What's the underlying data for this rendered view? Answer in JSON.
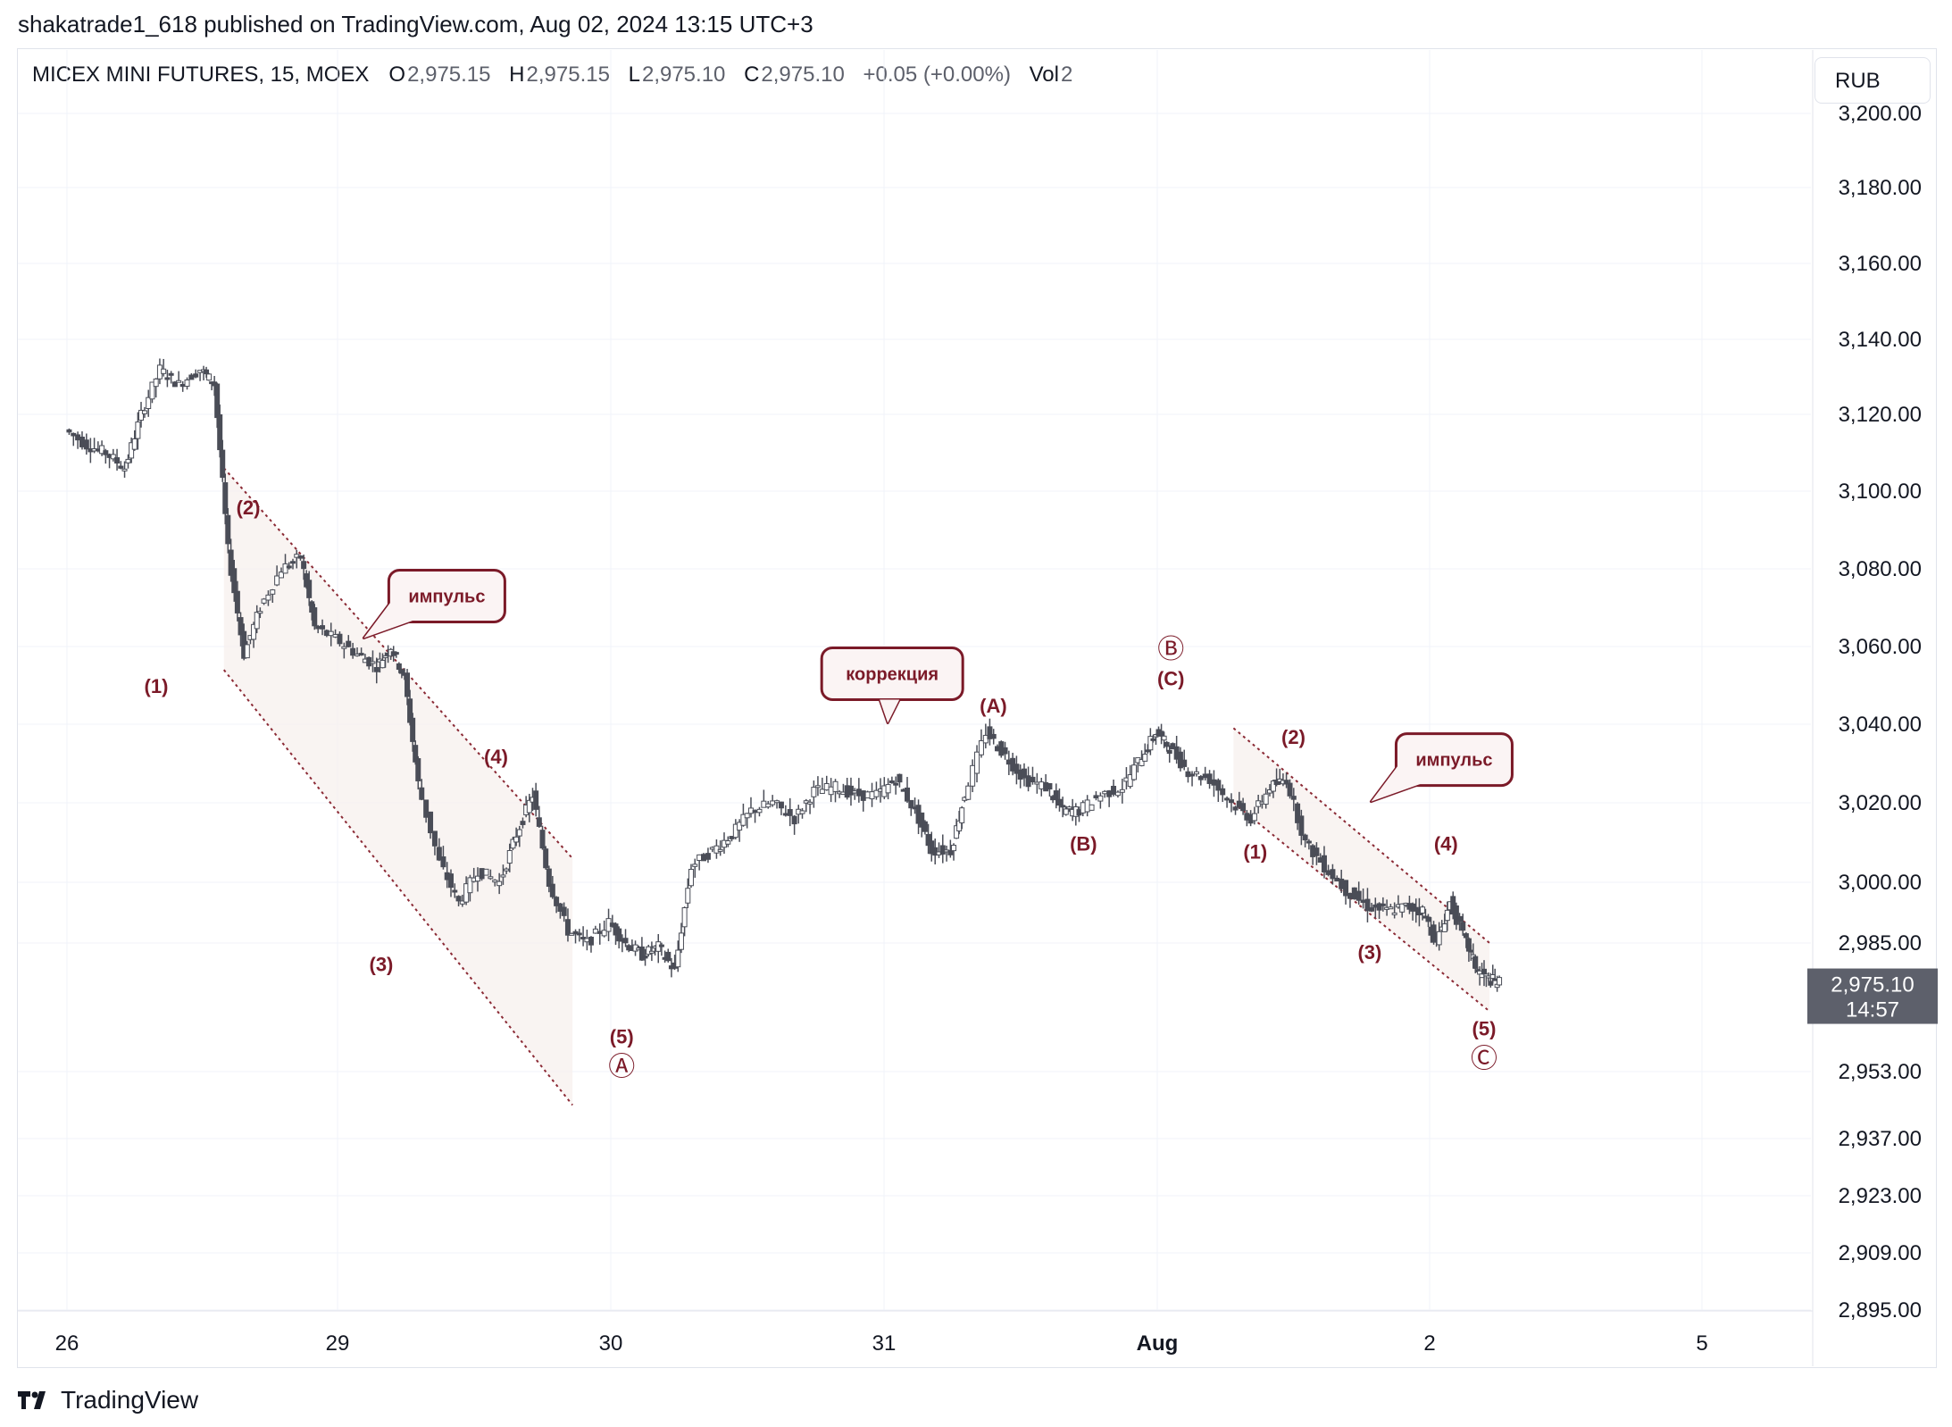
{
  "header": {
    "published": "shakatrade1_618 published on TradingView.com, Aug 02, 2024 13:15 UTC+3"
  },
  "legend": {
    "symbol": "MICEX MINI FUTURES, 15, MOEX",
    "o_label": "O",
    "o_value": "2,975.15",
    "h_label": "H",
    "h_value": "2,975.15",
    "l_label": "L",
    "l_value": "2,975.10",
    "c_label": "C",
    "c_value": "2,975.10",
    "change": "+0.05 (+0.00%)",
    "vol_label": "Vol",
    "vol_value": "2"
  },
  "currency": "RUB",
  "price_tag": {
    "price": "2,975.10",
    "countdown": "14:57",
    "color": "#5d606b"
  },
  "footer": {
    "brand": "TradingView"
  },
  "chart_data": {
    "type": "candlestick",
    "instrument": "MICEX MINI FUTURES",
    "timeframe": "15",
    "x_ticks": [
      "26",
      "29",
      "30",
      "31",
      "Aug",
      "2",
      "5"
    ],
    "y_ticks": [
      "3,200.00",
      "3,180.00",
      "3,160.00",
      "3,140.00",
      "3,120.00",
      "3,100.00",
      "3,080.00",
      "3,060.00",
      "3,040.00",
      "3,020.00",
      "3,000.00",
      "2,985.00",
      "2,953.00",
      "2,937.00",
      "2,923.00",
      "2,909.00",
      "2,895.00"
    ],
    "y_tick_values": [
      3200,
      3180,
      3160,
      3140,
      3120,
      3100,
      3080,
      3060,
      3040,
      3020,
      3000,
      2985,
      2953,
      2937,
      2923,
      2909,
      2895
    ],
    "last_price": 2975.1,
    "candle_color": "#4a4d57",
    "series": [
      {
        "t": 0.0,
        "p": 3116
      },
      {
        "t": 0.08,
        "p": 3112
      },
      {
        "t": 0.15,
        "p": 3110
      },
      {
        "t": 0.22,
        "p": 3106
      },
      {
        "t": 0.28,
        "p": 3120
      },
      {
        "t": 0.35,
        "p": 3132
      },
      {
        "t": 0.42,
        "p": 3128
      },
      {
        "t": 0.5,
        "p": 3132
      },
      {
        "t": 0.55,
        "p": 3128
      },
      {
        "t": 0.6,
        "p": 3085
      },
      {
        "t": 0.66,
        "p": 3058
      },
      {
        "t": 0.72,
        "p": 3070
      },
      {
        "t": 0.8,
        "p": 3080
      },
      {
        "t": 0.87,
        "p": 3083
      },
      {
        "t": 0.92,
        "p": 3065
      },
      {
        "t": 1.0,
        "p": 3062
      },
      {
        "t": 1.08,
        "p": 3058
      },
      {
        "t": 1.15,
        "p": 3055
      },
      {
        "t": 1.2,
        "p": 3060
      },
      {
        "t": 1.25,
        "p": 3052
      },
      {
        "t": 1.3,
        "p": 3025
      },
      {
        "t": 1.38,
        "p": 3005
      },
      {
        "t": 1.45,
        "p": 2995
      },
      {
        "t": 1.52,
        "p": 3003
      },
      {
        "t": 1.6,
        "p": 3000
      },
      {
        "t": 1.66,
        "p": 3012
      },
      {
        "t": 1.72,
        "p": 3022
      },
      {
        "t": 1.78,
        "p": 3000
      },
      {
        "t": 1.85,
        "p": 2988
      },
      {
        "t": 1.92,
        "p": 2985
      },
      {
        "t": 2.0,
        "p": 2990
      },
      {
        "t": 2.06,
        "p": 2985
      },
      {
        "t": 2.12,
        "p": 2982
      },
      {
        "t": 2.18,
        "p": 2984
      },
      {
        "t": 2.24,
        "p": 2978
      },
      {
        "t": 2.3,
        "p": 3004
      },
      {
        "t": 2.38,
        "p": 3008
      },
      {
        "t": 2.45,
        "p": 3012
      },
      {
        "t": 2.52,
        "p": 3018
      },
      {
        "t": 2.6,
        "p": 3020
      },
      {
        "t": 2.68,
        "p": 3016
      },
      {
        "t": 2.75,
        "p": 3023
      },
      {
        "t": 2.83,
        "p": 3024
      },
      {
        "t": 2.9,
        "p": 3022
      },
      {
        "t": 2.98,
        "p": 3022
      },
      {
        "t": 3.05,
        "p": 3026
      },
      {
        "t": 3.12,
        "p": 3018
      },
      {
        "t": 3.18,
        "p": 3008
      },
      {
        "t": 3.25,
        "p": 3008
      },
      {
        "t": 3.3,
        "p": 3022
      },
      {
        "t": 3.38,
        "p": 3038
      },
      {
        "t": 3.45,
        "p": 3032
      },
      {
        "t": 3.52,
        "p": 3026
      },
      {
        "t": 3.6,
        "p": 3024
      },
      {
        "t": 3.66,
        "p": 3018
      },
      {
        "t": 3.72,
        "p": 3018
      },
      {
        "t": 3.8,
        "p": 3022
      },
      {
        "t": 3.88,
        "p": 3024
      },
      {
        "t": 3.95,
        "p": 3032
      },
      {
        "t": 4.0,
        "p": 3038
      },
      {
        "t": 4.05,
        "p": 3034
      },
      {
        "t": 4.12,
        "p": 3028
      },
      {
        "t": 4.2,
        "p": 3026
      },
      {
        "t": 4.28,
        "p": 3020
      },
      {
        "t": 4.35,
        "p": 3016
      },
      {
        "t": 4.42,
        "p": 3024
      },
      {
        "t": 4.48,
        "p": 3026
      },
      {
        "t": 4.55,
        "p": 3010
      },
      {
        "t": 4.62,
        "p": 3004
      },
      {
        "t": 4.7,
        "p": 2998
      },
      {
        "t": 4.78,
        "p": 2994
      },
      {
        "t": 4.85,
        "p": 2993
      },
      {
        "t": 4.92,
        "p": 2994
      },
      {
        "t": 4.98,
        "p": 2993
      },
      {
        "t": 5.03,
        "p": 2985
      },
      {
        "t": 5.08,
        "p": 2995
      },
      {
        "t": 5.14,
        "p": 2985
      },
      {
        "t": 5.18,
        "p": 2978
      },
      {
        "t": 5.22,
        "p": 2976
      },
      {
        "t": 5.26,
        "p": 2975.1
      }
    ],
    "annotations": {
      "wave_labels": [
        {
          "text": "(1)",
          "t": 0.33,
          "p": 3048
        },
        {
          "text": "(2)",
          "t": 0.67,
          "p": 3094
        },
        {
          "text": "(3)",
          "t": 1.16,
          "p": 2978
        },
        {
          "text": "(4)",
          "t": 1.58,
          "p": 3030
        },
        {
          "text": "(5)",
          "t": 2.04,
          "p": 2960
        },
        {
          "text": "Ⓐ",
          "t": 2.04,
          "p": 2952
        },
        {
          "text": "(A)",
          "t": 3.4,
          "p": 3043
        },
        {
          "text": "(B)",
          "t": 3.73,
          "p": 3008
        },
        {
          "text": "Ⓑ",
          "t": 4.05,
          "p": 3057
        },
        {
          "text": "(C)",
          "t": 4.05,
          "p": 3050
        },
        {
          "text": "(1)",
          "t": 4.36,
          "p": 3006
        },
        {
          "text": "(2)",
          "t": 4.5,
          "p": 3035
        },
        {
          "text": "(3)",
          "t": 4.78,
          "p": 2981
        },
        {
          "text": "(4)",
          "t": 5.06,
          "p": 3008
        },
        {
          "text": "(5)",
          "t": 5.2,
          "p": 2962
        },
        {
          "text": "Ⓒ",
          "t": 5.2,
          "p": 2954
        }
      ],
      "callouts": [
        {
          "text": "импульс",
          "t": 1.4,
          "p": 3073
        },
        {
          "text": "коррекция",
          "t": 3.03,
          "p": 3053
        },
        {
          "text": "импульс",
          "t": 5.09,
          "p": 3031
        }
      ]
    }
  }
}
